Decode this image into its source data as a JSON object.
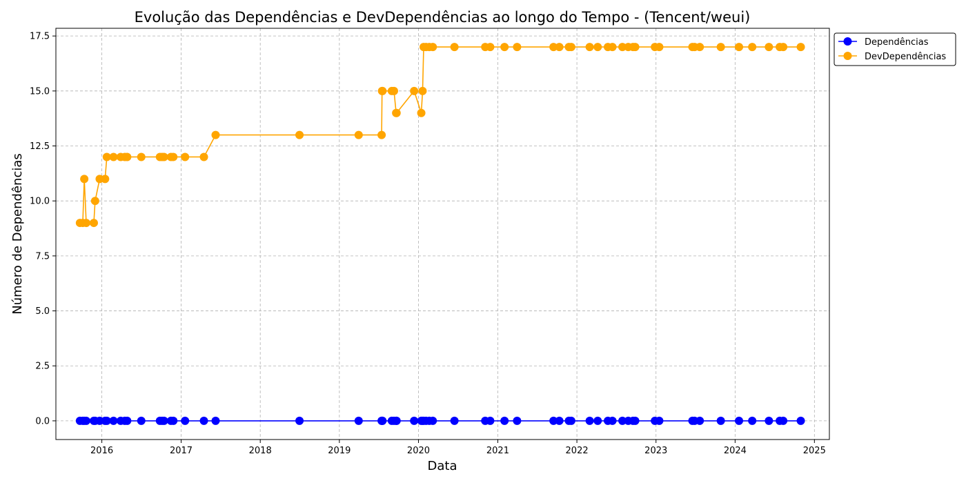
{
  "chart_data": {
    "type": "line",
    "title": "Evolução das Dependências e DevDependências ao longo do Tempo - (Tencent/weui)",
    "xlabel": "Data",
    "ylabel": "Número de Dependências",
    "x_ticks": [
      "2016",
      "2017",
      "2018",
      "2019",
      "2020",
      "2021",
      "2022",
      "2023",
      "2024",
      "2025"
    ],
    "y_ticks": [
      "0.0",
      "2.5",
      "5.0",
      "7.5",
      "10.0",
      "12.5",
      "15.0",
      "17.5"
    ],
    "xlim": [
      "2015-06-03",
      "2025-03-11"
    ],
    "ylim": [
      -0.85,
      17.85
    ],
    "grid": true,
    "legend_position": "outside-top-right",
    "x": [
      "2015-09-22",
      "2015-10-05",
      "2015-10-12",
      "2015-10-21",
      "2015-11-25",
      "2015-12-01",
      "2015-12-22",
      "2016-01-16",
      "2016-01-24",
      "2016-02-24",
      "2016-03-28",
      "2016-04-16",
      "2016-04-27",
      "2016-07-01",
      "2016-09-25",
      "2016-10-05",
      "2016-10-14",
      "2016-11-15",
      "2016-11-26",
      "2017-01-19",
      "2017-04-16",
      "2017-06-09",
      "2018-07-01",
      "2019-03-31",
      "2019-07-15",
      "2019-07-17",
      "2019-07-19",
      "2019-08-31",
      "2019-09-10",
      "2019-09-20",
      "2019-09-22",
      "2019-12-12",
      "2020-01-14",
      "2020-01-20",
      "2020-01-25",
      "2020-02-05",
      "2020-02-20",
      "2020-03-07",
      "2020-06-15",
      "2020-11-04",
      "2020-11-27",
      "2021-02-01",
      "2021-03-31",
      "2021-09-15",
      "2021-10-12",
      "2021-11-25",
      "2021-12-06",
      "2022-03-01",
      "2022-04-07",
      "2022-05-24",
      "2022-06-14",
      "2022-07-30",
      "2022-08-26",
      "2022-09-17",
      "2022-09-27",
      "2022-12-27",
      "2023-01-16",
      "2023-06-18",
      "2023-06-28",
      "2023-07-22",
      "2023-10-27",
      "2024-01-19",
      "2024-03-20",
      "2024-06-05",
      "2024-07-25",
      "2024-08-10",
      "2024-10-30"
    ],
    "series": [
      {
        "name": "Dependências",
        "color": "#0000ff",
        "values": [
          0,
          0,
          0,
          0,
          0,
          0,
          0,
          0,
          0,
          0,
          0,
          0,
          0,
          0,
          0,
          0,
          0,
          0,
          0,
          0,
          0,
          0,
          0,
          0,
          0,
          0,
          0,
          0,
          0,
          0,
          0,
          0,
          0,
          0,
          0,
          0,
          0,
          0,
          0,
          0,
          0,
          0,
          0,
          0,
          0,
          0,
          0,
          0,
          0,
          0,
          0,
          0,
          0,
          0,
          0,
          0,
          0,
          0,
          0,
          0,
          0,
          0,
          0,
          0,
          0,
          0,
          0
        ]
      },
      {
        "name": "DevDependências",
        "color": "#ffa500",
        "values": [
          9,
          9,
          11,
          9,
          9,
          10,
          11,
          11,
          12,
          12,
          12,
          12,
          12,
          12,
          12,
          12,
          12,
          12,
          12,
          12,
          12,
          13,
          13,
          13,
          13,
          15,
          15,
          15,
          15,
          14,
          14,
          15,
          14,
          15,
          17,
          17,
          17,
          17,
          17,
          17,
          17,
          17,
          17,
          17,
          17,
          17,
          17,
          17,
          17,
          17,
          17,
          17,
          17,
          17,
          17,
          17,
          17,
          17,
          17,
          17,
          17,
          17,
          17,
          17,
          17,
          17,
          17
        ]
      }
    ]
  }
}
